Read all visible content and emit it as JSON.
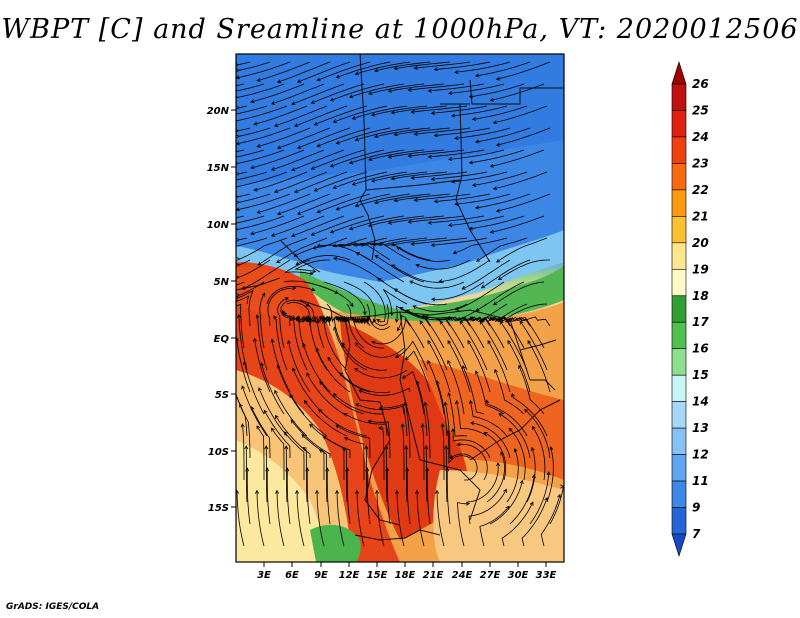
{
  "title": "WBPT [C] and Sreamline at 1000hPa, VT: 2020012506",
  "footer": "GrADS: IGES/COLA",
  "map": {
    "lat_ticks": [
      "20N",
      "15N",
      "10N",
      "5N",
      "EQ",
      "5S",
      "10S",
      "15S"
    ],
    "lon_ticks": [
      "3E",
      "6E",
      "9E",
      "12E",
      "15E",
      "18E",
      "21E",
      "24E",
      "27E",
      "30E",
      "33E"
    ]
  },
  "colorbar": {
    "labels": [
      "26",
      "25",
      "24",
      "23",
      "22",
      "21",
      "20",
      "19",
      "18",
      "17",
      "16",
      "15",
      "14",
      "13",
      "12",
      "11",
      "9",
      "7"
    ],
    "colors": [
      "#a00000",
      "#c01010",
      "#e02010",
      "#f04010",
      "#f86a10",
      "#fc9a10",
      "#fcc030",
      "#fde68c",
      "#fdfac8",
      "#2fa02f",
      "#50c050",
      "#8ee08e",
      "#c8f4f4",
      "#a8d8f8",
      "#86c2f8",
      "#5ea6f2",
      "#3c8ae8",
      "#2466d8",
      "#1448c8"
    ]
  }
}
